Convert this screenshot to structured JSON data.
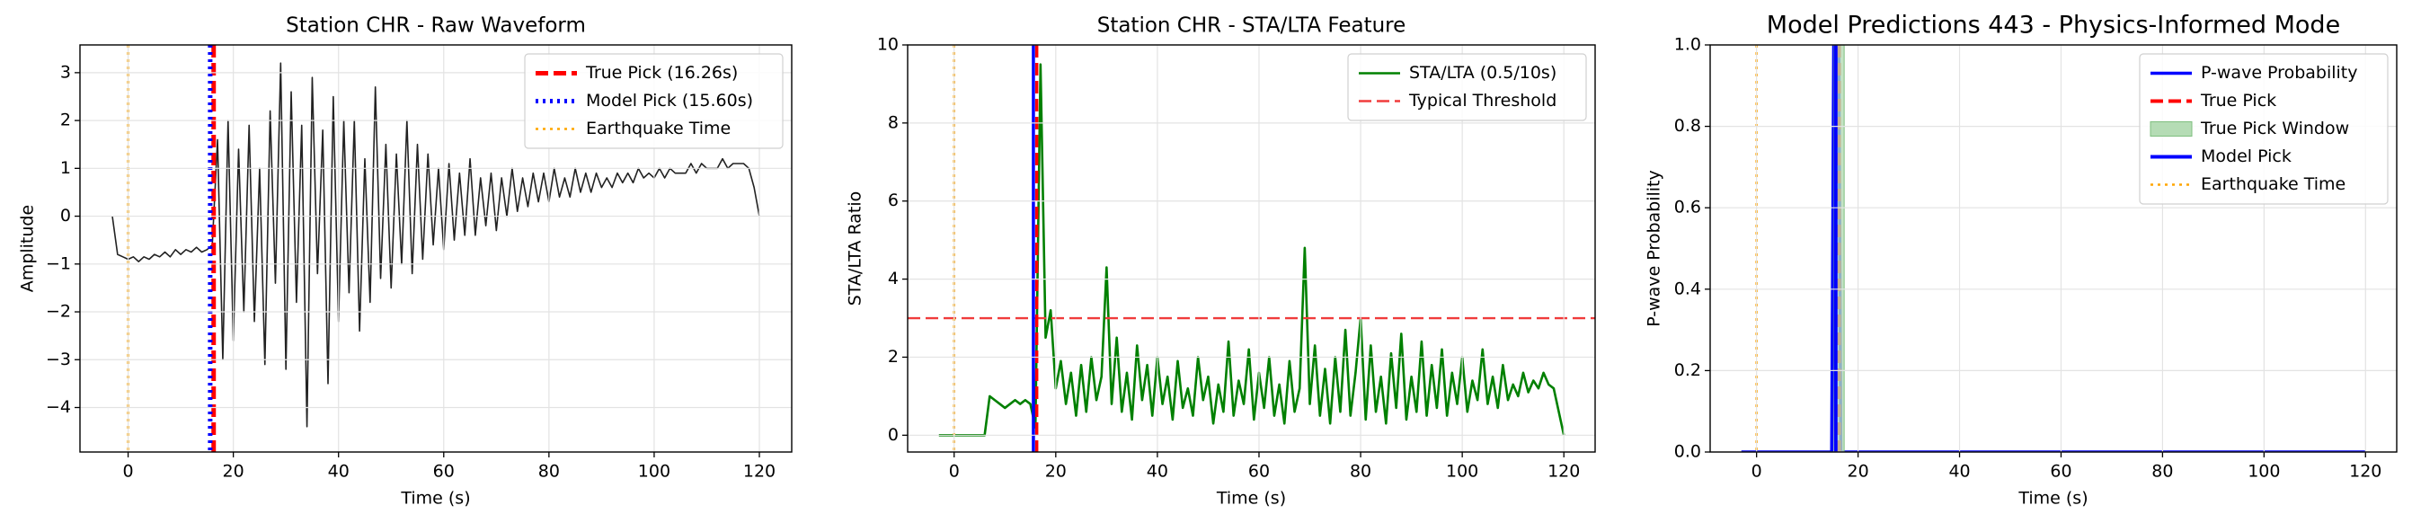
{
  "chart_data": [
    {
      "type": "line",
      "title": "Station CHR - Raw Waveform",
      "xlabel": "Time (s)",
      "ylabel": "Amplitude",
      "xlim": [
        -9.15,
        126.15
      ],
      "ylim": [
        -4.93,
        3.58
      ],
      "xticks": [
        0,
        20,
        40,
        60,
        80,
        100,
        120
      ],
      "yticks": [
        {
          "value": -4,
          "label": "−4"
        },
        {
          "value": -3,
          "label": "−3"
        },
        {
          "value": -2,
          "label": "−2"
        },
        {
          "value": -1,
          "label": "−1"
        },
        0,
        1,
        2,
        3
      ],
      "grid": true,
      "legend": "upper right",
      "series": [
        {
          "color": "#222222",
          "style": "solid",
          "linewidth": 1.6,
          "x": [
            -3,
            -2,
            -1,
            0,
            1,
            2,
            3,
            4,
            5,
            6,
            7,
            8,
            9,
            10,
            11,
            12,
            13,
            14,
            15,
            16,
            17,
            18,
            19,
            20,
            21,
            22,
            23,
            24,
            25,
            26,
            27,
            28,
            29,
            30,
            31,
            32,
            33,
            34,
            35,
            36,
            37,
            38,
            39,
            40,
            41,
            42,
            43,
            44,
            45,
            46,
            47,
            48,
            49,
            50,
            51,
            52,
            53,
            54,
            55,
            56,
            57,
            58,
            59,
            60,
            61,
            62,
            63,
            64,
            65,
            66,
            67,
            68,
            69,
            70,
            71,
            72,
            73,
            74,
            75,
            76,
            77,
            78,
            79,
            80,
            81,
            82,
            83,
            84,
            85,
            86,
            87,
            88,
            89,
            90,
            91,
            92,
            93,
            94,
            95,
            96,
            97,
            98,
            99,
            100,
            101,
            102,
            103,
            104,
            105,
            106,
            107,
            108,
            109,
            110,
            111,
            112,
            113,
            114,
            115,
            116,
            117,
            118,
            119,
            120
          ],
          "values": [
            0,
            -0.8,
            -0.85,
            -0.9,
            -0.85,
            -0.95,
            -0.85,
            -0.9,
            -0.8,
            -0.85,
            -0.75,
            -0.85,
            -0.7,
            -0.8,
            -0.7,
            -0.75,
            -0.65,
            -0.75,
            -0.7,
            -0.6,
            1.6,
            -3.0,
            2.0,
            -2.6,
            1.4,
            -2.0,
            1.9,
            -2.2,
            1.0,
            -3.1,
            2.2,
            -1.4,
            3.2,
            -3.2,
            2.6,
            -1.8,
            1.9,
            -4.4,
            2.9,
            -1.2,
            1.8,
            -3.5,
            2.5,
            -2.2,
            2.0,
            -1.6,
            2.0,
            -2.4,
            1.2,
            -1.8,
            2.7,
            -1.3,
            1.5,
            -1.5,
            1.3,
            -1.0,
            2.0,
            -1.2,
            1.5,
            -0.9,
            1.3,
            -0.6,
            1.0,
            -0.7,
            1.1,
            -0.5,
            0.9,
            -0.4,
            1.2,
            -0.4,
            0.8,
            -0.2,
            0.9,
            -0.3,
            0.8,
            0,
            1.0,
            0.1,
            0.8,
            0.2,
            0.9,
            0.3,
            0.9,
            0.3,
            1.0,
            0.4,
            0.8,
            0.4,
            1.0,
            0.5,
            0.9,
            0.5,
            0.9,
            0.6,
            0.8,
            0.6,
            0.9,
            0.7,
            0.9,
            0.7,
            1.0,
            0.8,
            0.9,
            0.8,
            1.0,
            0.8,
            1.0,
            0.9,
            0.9,
            0.9,
            1.1,
            0.9,
            1.1,
            1.0,
            1.0,
            1.0,
            1.2,
            1.0,
            1.1,
            1.1,
            1.1,
            1.0,
            0.6,
            0
          ]
        },
        {
          "name": "True Pick (16.26s)",
          "color": "#ff0000",
          "style": "dashed",
          "linewidth": 5,
          "x": 16.26
        },
        {
          "name": "Model Pick (15.60s)",
          "color": "#0000ff",
          "style": "dotted",
          "linewidth": 5,
          "x": 15.6
        },
        {
          "name": "Earthquake Time",
          "color": "#ffa500",
          "style": "dotted",
          "linewidth": 2.5,
          "x": 0
        }
      ]
    },
    {
      "type": "line",
      "title": "Station CHR - STA/LTA Feature",
      "xlabel": "Time (s)",
      "ylabel": "STA/LTA Ratio",
      "xlim": [
        -9.15,
        126.15
      ],
      "ylim": [
        -0.43,
        10
      ],
      "xticks": [
        0,
        20,
        40,
        60,
        80,
        100,
        120
      ],
      "yticks": [
        0,
        2,
        4,
        6,
        8,
        10
      ],
      "grid": true,
      "legend": "upper right",
      "series": [
        {
          "name": "STA/LTA (0.5/10s)",
          "color": "#008000",
          "style": "solid",
          "linewidth": 2.6,
          "x": [
            -3,
            -2,
            -1,
            0,
            1,
            2,
            3,
            4,
            5,
            6,
            7,
            8,
            9,
            10,
            11,
            12,
            13,
            14,
            15,
            16,
            17,
            18,
            19,
            20,
            21,
            22,
            23,
            24,
            25,
            26,
            27,
            28,
            29,
            30,
            31,
            32,
            33,
            34,
            35,
            36,
            37,
            38,
            39,
            40,
            41,
            42,
            43,
            44,
            45,
            46,
            47,
            48,
            49,
            50,
            51,
            52,
            53,
            54,
            55,
            56,
            57,
            58,
            59,
            60,
            61,
            62,
            63,
            64,
            65,
            66,
            67,
            68,
            69,
            70,
            71,
            72,
            73,
            74,
            75,
            76,
            77,
            78,
            79,
            80,
            81,
            82,
            83,
            84,
            85,
            86,
            87,
            88,
            89,
            90,
            91,
            92,
            93,
            94,
            95,
            96,
            97,
            98,
            99,
            100,
            101,
            102,
            103,
            104,
            105,
            106,
            107,
            108,
            109,
            110,
            111,
            112,
            113,
            114,
            115,
            116,
            117,
            118,
            119,
            120
          ],
          "values": [
            0,
            0,
            0,
            0,
            0,
            0,
            0,
            0,
            0,
            0,
            1.0,
            0.9,
            0.8,
            0.7,
            0.8,
            0.9,
            0.8,
            0.9,
            0.8,
            0.2,
            9.5,
            2.5,
            3.2,
            1.2,
            1.9,
            0.8,
            1.6,
            0.5,
            1.8,
            0.6,
            2.0,
            0.9,
            1.5,
            4.3,
            0.8,
            2.5,
            0.6,
            1.6,
            0.4,
            2.3,
            0.9,
            1.8,
            0.5,
            2.0,
            0.8,
            1.5,
            0.4,
            1.9,
            0.7,
            1.2,
            0.5,
            2.0,
            0.9,
            1.5,
            0.3,
            1.3,
            0.6,
            2.4,
            0.5,
            1.4,
            0.8,
            2.2,
            0.4,
            1.6,
            0.7,
            2.0,
            0.5,
            1.3,
            0.3,
            1.9,
            0.6,
            1.2,
            4.8,
            0.8,
            2.3,
            0.5,
            1.7,
            0.3,
            2.0,
            0.6,
            2.7,
            0.5,
            1.6,
            3.0,
            0.4,
            2.3,
            0.6,
            1.5,
            0.3,
            2.1,
            0.7,
            2.6,
            0.4,
            1.5,
            0.6,
            2.4,
            0.5,
            1.8,
            0.7,
            2.2,
            0.5,
            1.6,
            0.8,
            2.0,
            0.6,
            1.4,
            0.9,
            2.2,
            0.8,
            1.5,
            0.7,
            1.8,
            0.9,
            1.3,
            1.0,
            1.6,
            1.1,
            1.4,
            1.2,
            1.6,
            1.3,
            1.2,
            0.6,
            0
          ]
        },
        {
          "name": "Typical Threshold",
          "color": "#f03c3c",
          "style": "dashed",
          "linewidth": 2.4,
          "y": 3
        },
        {
          "color": "#ff0000",
          "style": "dashed",
          "linewidth": 3.5,
          "x": 16.26
        },
        {
          "color": "#0000ff",
          "style": "solid",
          "linewidth": 3.5,
          "x": 15.6
        },
        {
          "color": "#ffa500",
          "style": "dotted",
          "linewidth": 2.5,
          "x": 0
        }
      ]
    },
    {
      "type": "line",
      "title": "Model Predictions 443 - Physics-Informed Mode",
      "xlabel": "Time (s)",
      "ylabel": "P-wave Probability",
      "xlim": [
        -9.15,
        126.15
      ],
      "ylim": [
        0,
        1
      ],
      "xticks": [
        0,
        20,
        40,
        60,
        80,
        100,
        120
      ],
      "yticks": [
        {
          "value": 0,
          "label": "0.0"
        },
        0.2,
        0.4,
        0.6,
        0.8,
        {
          "value": 1,
          "label": "1.0"
        }
      ],
      "grid": true,
      "legend": "upper right",
      "series": [
        {
          "name": "P-wave Probability",
          "color": "#0000ff",
          "style": "solid",
          "linewidth": 3.5,
          "x": [
            -3,
            14.8,
            15.2,
            16.2,
            16.6,
            120
          ],
          "values": [
            0,
            0,
            1,
            1,
            0,
            0
          ]
        },
        {
          "name": "True Pick",
          "color": "#ff0000",
          "style": "dashed",
          "linewidth": 4,
          "x": 16.26
        },
        {
          "name": "True Pick Window",
          "color": "#b5dcb5",
          "xspan": [
            15.26,
            17.26
          ]
        },
        {
          "name": "Model Pick",
          "color": "#0000ff",
          "style": "solid",
          "linewidth": 4,
          "x": 15.6
        },
        {
          "name": "Earthquake Time",
          "color": "#ffa500",
          "style": "dotted",
          "linewidth": 2.5,
          "x": 0
        }
      ]
    }
  ]
}
